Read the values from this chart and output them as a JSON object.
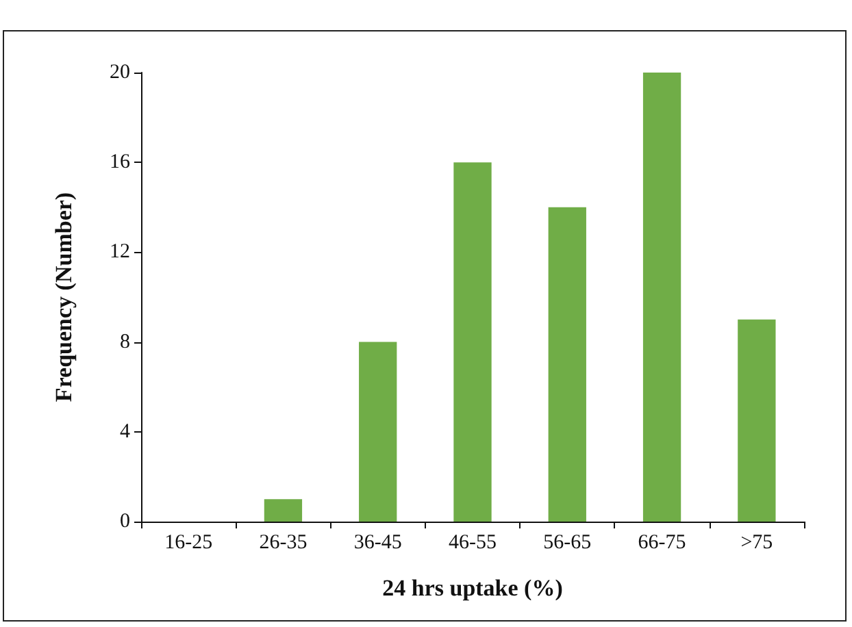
{
  "chart_data": {
    "type": "bar",
    "xlabel": "24 hrs uptake (%)",
    "ylabel": "Frequency (Number)",
    "categories": [
      "16-25",
      "26-35",
      "36-45",
      "46-55",
      "56-65",
      "66-75",
      ">75"
    ],
    "values": [
      0,
      1,
      8,
      16,
      14,
      20,
      9
    ],
    "color": "#70ad47",
    "ylim": [
      0,
      20
    ],
    "yticks": [
      0,
      4,
      8,
      12,
      16,
      20
    ],
    "grid": false
  }
}
